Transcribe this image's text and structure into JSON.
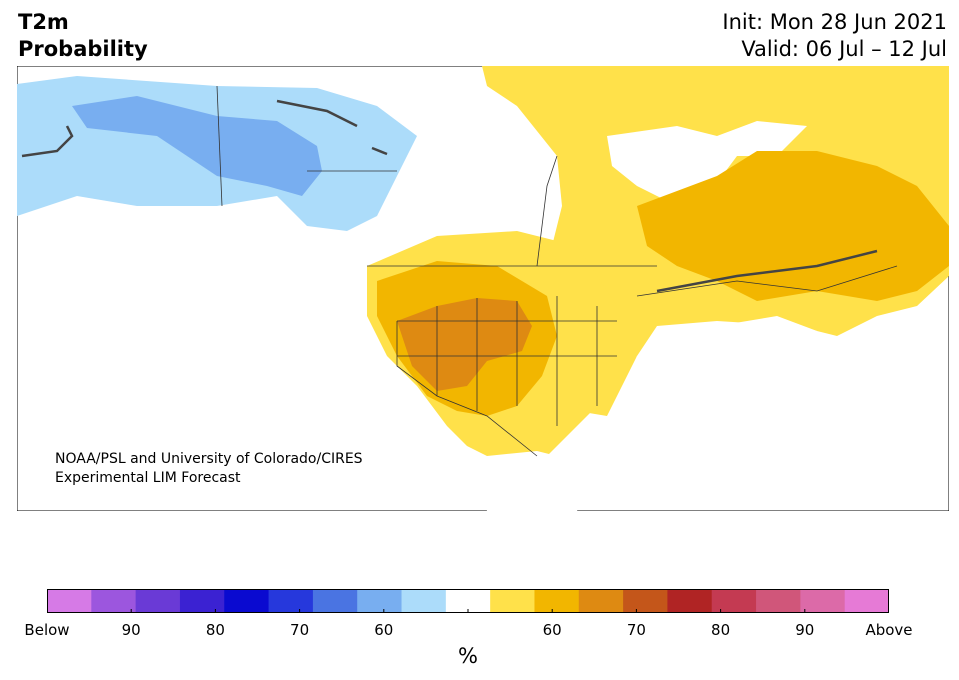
{
  "header": {
    "title_line1": "T2m",
    "title_line2": "Probability",
    "init": "Init: Mon 28 Jun 2021",
    "valid": "Valid: 06 Jul – 12 Jul"
  },
  "credit": {
    "line1": "NOAA/PSL and University of Colorado/CIRES",
    "line2": "Experimental LIM Forecast"
  },
  "colorbar": {
    "colors": [
      "#d67ae6",
      "#9c56de",
      "#6a3ad6",
      "#3b22d2",
      "#0a0ad0",
      "#2638dc",
      "#4a74e2",
      "#78aef0",
      "#acdcfa",
      "#ffffff",
      "#ffe14a",
      "#f2b600",
      "#de8a12",
      "#c4561a",
      "#b02424",
      "#c43a52",
      "#d0567a",
      "#dc6aa8",
      "#e67ad6"
    ],
    "tick_labels": [
      "Below",
      "90",
      "80",
      "70",
      "60",
      "",
      "60",
      "70",
      "80",
      "90",
      "Above"
    ],
    "units": "%"
  },
  "map_colors": {
    "light_blue": "#acdcfa",
    "mid_blue": "#78aef0",
    "light_yellow": "#ffe14a",
    "gold": "#f2b600",
    "orange": "#de8a12",
    "white": "#ffffff",
    "border": "#333333"
  }
}
